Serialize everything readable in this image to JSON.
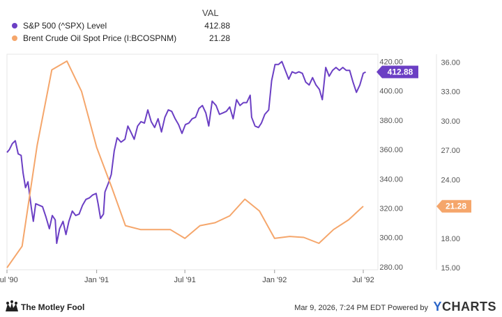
{
  "legend": {
    "header": "VAL",
    "items": [
      {
        "name": "S&P 500 (^SPX) Level",
        "value": "412.88",
        "color": "#6b3fc4"
      },
      {
        "name": "Brent Crude Oil Spot Price (I:BCOSPNM)",
        "value": "21.28",
        "color": "#f5a66b"
      }
    ]
  },
  "footer": {
    "brand": "The Motley Fool",
    "timestamp": "Mar 9, 2026, 7:24 PM EDT Powered by",
    "provider_mark": "Y",
    "provider_rest": "CHARTS"
  },
  "chart_data": {
    "type": "line",
    "x_ticks": [
      "Jul '90",
      "Jan '91",
      "Jul '91",
      "Jan '92",
      "Jul '92"
    ],
    "y_left_ticks": [
      "420.00",
      "400.00",
      "380.00",
      "360.00",
      "340.00",
      "320.00",
      "300.00",
      "280.00"
    ],
    "y_right_ticks": [
      "36.00",
      "33.00",
      "30.00",
      "27.00",
      "24.00",
      "21.00",
      "18.00",
      "15.00"
    ],
    "ylim_left": [
      278,
      425
    ],
    "ylim_right": [
      14.8,
      36.8
    ],
    "xlim": [
      "1990-07-01",
      "1992-07-31"
    ],
    "grid": false,
    "series": [
      {
        "name": "S&P 500 (^SPX) Level",
        "axis": "left",
        "color": "#6b3fc4",
        "last_label": "412.88",
        "points": [
          [
            "1990-07-01",
            358
          ],
          [
            "1990-07-06",
            360
          ],
          [
            "1990-07-12",
            364
          ],
          [
            "1990-07-18",
            366
          ],
          [
            "1990-07-24",
            357
          ],
          [
            "1990-07-30",
            356
          ],
          [
            "1990-08-03",
            344
          ],
          [
            "1990-08-08",
            334
          ],
          [
            "1990-08-13",
            338
          ],
          [
            "1990-08-20",
            320
          ],
          [
            "1990-08-24",
            311
          ],
          [
            "1990-08-29",
            323
          ],
          [
            "1990-09-05",
            322
          ],
          [
            "1990-09-12",
            321
          ],
          [
            "1990-09-19",
            314
          ],
          [
            "1990-09-26",
            306
          ],
          [
            "1990-10-02",
            315
          ],
          [
            "1990-10-08",
            312
          ],
          [
            "1990-10-11",
            296
          ],
          [
            "1990-10-17",
            306
          ],
          [
            "1990-10-24",
            311
          ],
          [
            "1990-10-30",
            302
          ],
          [
            "1990-11-05",
            311
          ],
          [
            "1990-11-12",
            318
          ],
          [
            "1990-11-19",
            315
          ],
          [
            "1990-11-26",
            316
          ],
          [
            "1990-12-03",
            322
          ],
          [
            "1990-12-10",
            326
          ],
          [
            "1990-12-17",
            327
          ],
          [
            "1990-12-24",
            329
          ],
          [
            "1990-12-31",
            330
          ],
          [
            "1991-01-04",
            323
          ],
          [
            "1991-01-09",
            313
          ],
          [
            "1991-01-15",
            316
          ],
          [
            "1991-01-18",
            331
          ],
          [
            "1991-01-25",
            337
          ],
          [
            "1991-01-31",
            343
          ],
          [
            "1991-02-06",
            359
          ],
          [
            "1991-02-12",
            368
          ],
          [
            "1991-02-20",
            365
          ],
          [
            "1991-02-28",
            367
          ],
          [
            "1991-03-06",
            376
          ],
          [
            "1991-03-12",
            372
          ],
          [
            "1991-03-19",
            367
          ],
          [
            "1991-03-26",
            376
          ],
          [
            "1991-04-02",
            379
          ],
          [
            "1991-04-09",
            378
          ],
          [
            "1991-04-16",
            387
          ],
          [
            "1991-04-23",
            379
          ],
          [
            "1991-04-30",
            375
          ],
          [
            "1991-05-07",
            381
          ],
          [
            "1991-05-14",
            372
          ],
          [
            "1991-05-21",
            382
          ],
          [
            "1991-05-28",
            387
          ],
          [
            "1991-06-04",
            386
          ],
          [
            "1991-06-11",
            381
          ],
          [
            "1991-06-18",
            377
          ],
          [
            "1991-06-25",
            371
          ],
          [
            "1991-07-02",
            377
          ],
          [
            "1991-07-09",
            378
          ],
          [
            "1991-07-16",
            381
          ],
          [
            "1991-07-23",
            382
          ],
          [
            "1991-07-30",
            388
          ],
          [
            "1991-08-06",
            390
          ],
          [
            "1991-08-13",
            385
          ],
          [
            "1991-08-19",
            376
          ],
          [
            "1991-08-26",
            393
          ],
          [
            "1991-09-03",
            390
          ],
          [
            "1991-09-10",
            384
          ],
          [
            "1991-09-17",
            385
          ],
          [
            "1991-09-24",
            386
          ],
          [
            "1991-10-01",
            389
          ],
          [
            "1991-10-08",
            381
          ],
          [
            "1991-10-15",
            394
          ],
          [
            "1991-10-22",
            390
          ],
          [
            "1991-10-29",
            392
          ],
          [
            "1991-11-05",
            392
          ],
          [
            "1991-11-12",
            397
          ],
          [
            "1991-11-15",
            382
          ],
          [
            "1991-11-22",
            376
          ],
          [
            "1991-11-29",
            375
          ],
          [
            "1991-12-05",
            378
          ],
          [
            "1991-12-12",
            384
          ],
          [
            "1991-12-20",
            387
          ],
          [
            "1991-12-26",
            407
          ],
          [
            "1992-01-02",
            418
          ],
          [
            "1992-01-09",
            418
          ],
          [
            "1992-01-16",
            420
          ],
          [
            "1992-01-23",
            414
          ],
          [
            "1992-01-30",
            408
          ],
          [
            "1992-02-06",
            413
          ],
          [
            "1992-02-13",
            412
          ],
          [
            "1992-02-20",
            413
          ],
          [
            "1992-02-27",
            412
          ],
          [
            "1992-03-05",
            406
          ],
          [
            "1992-03-12",
            404
          ],
          [
            "1992-03-19",
            409
          ],
          [
            "1992-03-26",
            404
          ],
          [
            "1992-04-02",
            401
          ],
          [
            "1992-04-08",
            394
          ],
          [
            "1992-04-15",
            416
          ],
          [
            "1992-04-22",
            410
          ],
          [
            "1992-04-29",
            414
          ],
          [
            "1992-05-06",
            416
          ],
          [
            "1992-05-13",
            414
          ],
          [
            "1992-05-20",
            416
          ],
          [
            "1992-05-27",
            414
          ],
          [
            "1992-06-03",
            414
          ],
          [
            "1992-06-10",
            406
          ],
          [
            "1992-06-17",
            399
          ],
          [
            "1992-06-24",
            404
          ],
          [
            "1992-07-01",
            412
          ],
          [
            "1992-07-06",
            412.88
          ]
        ]
      },
      {
        "name": "Brent Crude Oil Spot Price (I:BCOSPNM)",
        "axis": "right",
        "color": "#f5a66b",
        "last_label": "21.28",
        "points": [
          [
            "1990-07-01",
            15.0
          ],
          [
            "1990-08-01",
            17.2
          ],
          [
            "1990-09-01",
            27.5
          ],
          [
            "1990-10-01",
            35.2
          ],
          [
            "1990-11-01",
            36.1
          ],
          [
            "1990-12-01",
            33.0
          ],
          [
            "1991-01-01",
            27.3
          ],
          [
            "1991-02-01",
            23.2
          ],
          [
            "1991-03-01",
            19.3
          ],
          [
            "1991-04-01",
            18.9
          ],
          [
            "1991-05-01",
            18.9
          ],
          [
            "1991-06-01",
            18.9
          ],
          [
            "1991-07-01",
            18.0
          ],
          [
            "1991-08-01",
            19.3
          ],
          [
            "1991-09-01",
            19.6
          ],
          [
            "1991-10-01",
            20.3
          ],
          [
            "1991-11-01",
            22.0
          ],
          [
            "1991-12-01",
            20.8
          ],
          [
            "1992-01-01",
            18.0
          ],
          [
            "1992-02-01",
            18.2
          ],
          [
            "1992-03-01",
            18.1
          ],
          [
            "1992-04-01",
            17.5
          ],
          [
            "1992-05-01",
            18.9
          ],
          [
            "1992-06-01",
            19.9
          ],
          [
            "1992-07-01",
            21.28
          ]
        ]
      }
    ]
  }
}
